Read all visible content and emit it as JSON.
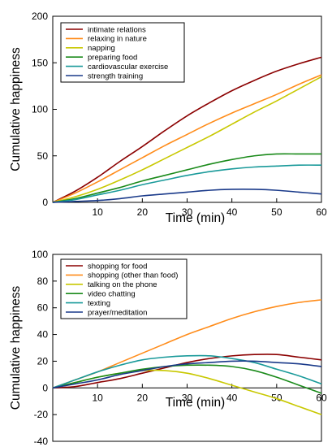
{
  "chart_data": [
    {
      "type": "line",
      "xlabel": "Time (min)",
      "ylabel": "Cumulative happiness",
      "xlim": [
        0,
        60
      ],
      "ylim": [
        0,
        200
      ],
      "xticks": [
        10,
        20,
        30,
        40,
        50,
        60
      ],
      "yticks": [
        0,
        50,
        100,
        150,
        200
      ],
      "grid": false,
      "legend_position": "top-left",
      "x": [
        0,
        5,
        10,
        15,
        20,
        25,
        30,
        35,
        40,
        45,
        50,
        55,
        60
      ],
      "series": [
        {
          "name": "intimate relations",
          "color": "#8b0000",
          "values": [
            0,
            12,
            27,
            44,
            60,
            77,
            93,
            107,
            120,
            131,
            141,
            149,
            156
          ]
        },
        {
          "name": "relaxing in nature",
          "color": "#ff8c1a",
          "values": [
            0,
            10,
            22,
            35,
            48,
            61,
            73,
            85,
            96,
            106,
            116,
            127,
            137
          ]
        },
        {
          "name": "napping",
          "color": "#c8c800",
          "values": [
            0,
            6,
            14,
            24,
            35,
            47,
            59,
            71,
            84,
            97,
            109,
            122,
            135
          ]
        },
        {
          "name": "preparing food",
          "color": "#1a8a1a",
          "values": [
            0,
            4,
            10,
            16,
            23,
            29,
            35,
            41,
            46,
            50,
            52,
            52,
            52
          ]
        },
        {
          "name": "cardiovascular exercise",
          "color": "#1a9a9a",
          "values": [
            0,
            3,
            8,
            13,
            19,
            24,
            29,
            33,
            36,
            38,
            39,
            40,
            40
          ]
        },
        {
          "name": "strength training",
          "color": "#1a3a8a",
          "values": [
            0,
            1,
            2,
            4,
            7,
            9,
            11,
            13,
            14,
            14,
            13,
            11,
            9
          ]
        }
      ]
    },
    {
      "type": "line",
      "xlabel": "Time (min)",
      "ylabel": "Cumulative happiness",
      "xlim": [
        0,
        60
      ],
      "ylim": [
        -40,
        100
      ],
      "xticks": [
        10,
        20,
        30,
        40,
        50,
        60
      ],
      "yticks": [
        -40,
        -20,
        0,
        20,
        40,
        60,
        80,
        100
      ],
      "grid": false,
      "legend_position": "top-left",
      "x": [
        0,
        5,
        10,
        15,
        20,
        25,
        30,
        35,
        40,
        45,
        50,
        55,
        60
      ],
      "series": [
        {
          "name": "shopping for food",
          "color": "#8b0000",
          "values": [
            0,
            1,
            4,
            7,
            11,
            15,
            19,
            22,
            24,
            25,
            25,
            23,
            21
          ]
        },
        {
          "name": "shopping (other than food)",
          "color": "#ff8c1a",
          "values": [
            0,
            6,
            12,
            19,
            26,
            33,
            40,
            46,
            52,
            57,
            61,
            64,
            66
          ]
        },
        {
          "name": "talking on the phone",
          "color": "#c8c800",
          "values": [
            0,
            4,
            8,
            11,
            13,
            13,
            11,
            7,
            2,
            -3,
            -8,
            -14,
            -20
          ]
        },
        {
          "name": "video chatting",
          "color": "#1a8a1a",
          "values": [
            0,
            4,
            8,
            11,
            14,
            16,
            17,
            17,
            16,
            13,
            8,
            2,
            -4
          ]
        },
        {
          "name": "texting",
          "color": "#1a9a9a",
          "values": [
            0,
            6,
            12,
            17,
            21,
            23,
            24,
            24,
            22,
            19,
            14,
            9,
            3
          ]
        },
        {
          "name": "prayer/meditation",
          "color": "#1a3a8a",
          "values": [
            0,
            3,
            6,
            10,
            13,
            16,
            18,
            19,
            20,
            20,
            19,
            18,
            16
          ]
        }
      ]
    }
  ]
}
